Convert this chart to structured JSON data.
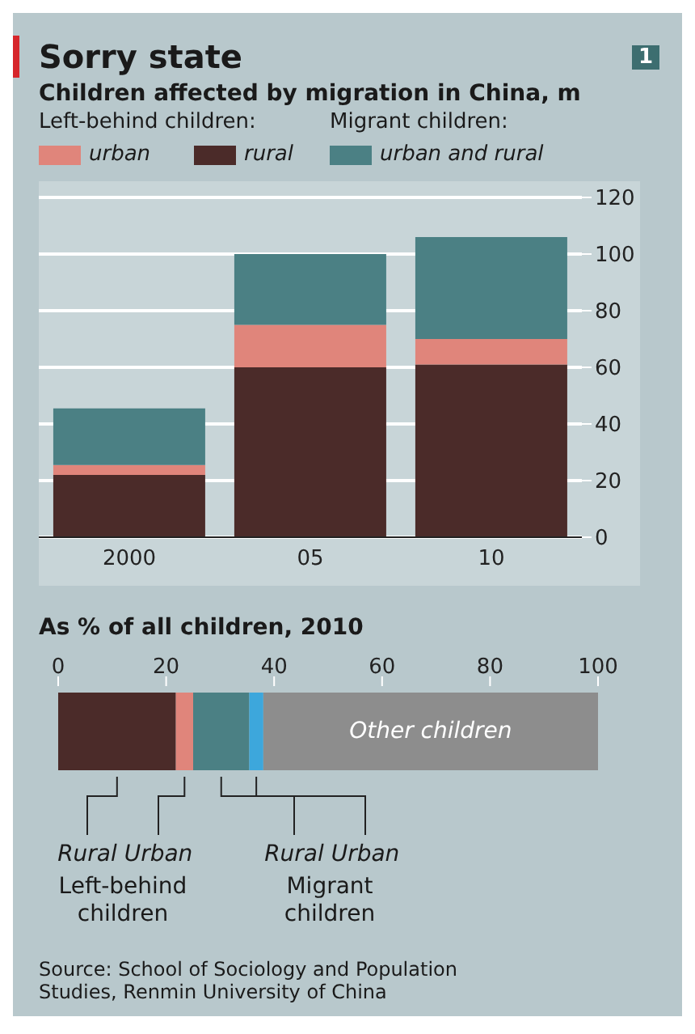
{
  "chart_data": [
    {
      "type": "bar",
      "title": "Sorry state",
      "subtitle": "Children affected by migration in China, m",
      "categories": [
        "2000",
        "05",
        "10"
      ],
      "stacked": true,
      "series": [
        {
          "name": "rural",
          "color": "#4b2b29",
          "values": [
            22,
            60,
            61
          ]
        },
        {
          "name": "urban",
          "color": "#e0857b",
          "values": [
            3.5,
            15,
            9
          ]
        },
        {
          "name": "urban and rural",
          "color": "#4b8084",
          "values": [
            20,
            25,
            36
          ]
        }
      ],
      "ylim": [
        0,
        120
      ],
      "yticks": [
        0,
        20,
        40,
        60,
        80,
        100,
        120
      ],
      "grid": "y",
      "legend": "top left",
      "annotations": [
        "Left-behind children:",
        "Migrant children:",
        "1"
      ]
    },
    {
      "type": "bar",
      "title": "As % of all children, 2010",
      "orientation": "horizontal",
      "stacked": true,
      "categories": [
        null
      ],
      "series": [
        {
          "name": "Rural",
          "color": "#4b2b29",
          "values": [
            21.8
          ]
        },
        {
          "name": "Urban",
          "color": "#e0857b",
          "values": [
            3.2
          ]
        },
        {
          "name": "Rural",
          "color": "#4b8084",
          "values": [
            10.4
          ]
        },
        {
          "name": "Urban",
          "color": "#3da7dc",
          "values": [
            2.6
          ]
        },
        {
          "name": "Other children",
          "color": "#8d8d8d",
          "values": [
            62
          ]
        }
      ],
      "xlim": [
        0,
        100
      ],
      "xticks": [
        0,
        20,
        40,
        60,
        80,
        100
      ],
      "annotations": [
        "Left-behind children",
        "Migrant children",
        "Source: School of Sociology and Population Studies, Renmin University of China"
      ]
    }
  ]
}
